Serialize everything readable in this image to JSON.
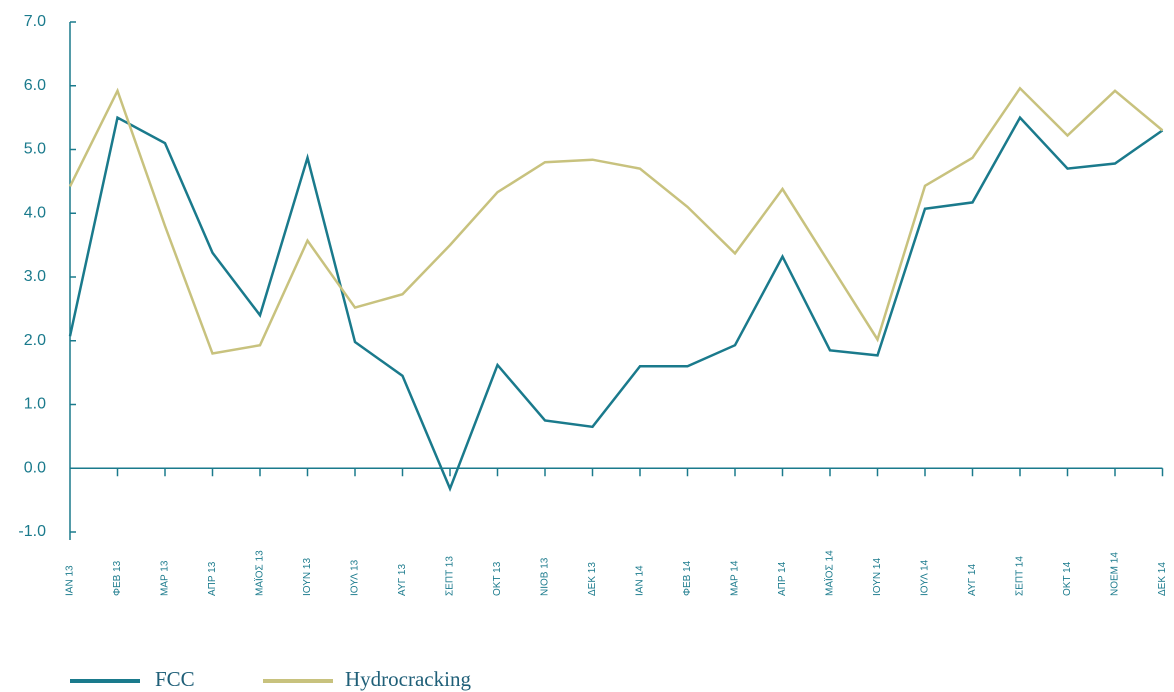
{
  "chart_data": {
    "type": "line",
    "categories": [
      "ΙΑΝ 13",
      "ΦΕΒ 13",
      "ΜΑΡ 13",
      "ΑΠΡ 13",
      "ΜΑΪΟΣ 13",
      "ΙΟΥΝ 13",
      "ΙΟΥΛ 13",
      "ΑΥΓ 13",
      "ΣΕΠΤ 13",
      "ΟΚΤ 13",
      "ΝΙΟΒ 13",
      "ΔΕΚ 13",
      "ΙΑΝ 14",
      "ΦΕΒ 14",
      "ΜΑΡ 14",
      "ΑΠΡ 14",
      "ΜΑΪΟΣ 14",
      "ΙΟΥΝ 14",
      "ΙΟΥΛ 14",
      "ΑΥΓ 14",
      "ΣΕΠΤ 14",
      "ΟΚΤ 14",
      "ΝΟΕΜ 14",
      "ΔΕΚ 14"
    ],
    "series": [
      {
        "name": "FCC",
        "color": "#1a7a8c",
        "values": [
          2.07,
          5.5,
          5.1,
          3.38,
          2.4,
          4.87,
          1.98,
          1.45,
          -0.32,
          1.62,
          0.75,
          0.65,
          1.6,
          1.6,
          1.93,
          3.32,
          1.85,
          1.77,
          4.07,
          4.17,
          5.5,
          4.7,
          4.78,
          5.3
        ]
      },
      {
        "name": "Hydrocracking",
        "color": "#c8c27e",
        "values": [
          4.42,
          5.92,
          3.8,
          1.8,
          1.93,
          3.57,
          2.52,
          2.73,
          3.5,
          4.33,
          4.8,
          4.84,
          4.7,
          4.1,
          3.37,
          4.38,
          3.2,
          2.02,
          4.43,
          4.87,
          5.96,
          5.22,
          5.92,
          5.3
        ]
      }
    ],
    "ylim": [
      -1,
      7
    ],
    "yticks": [
      {
        "value": -1,
        "label": "-1.0"
      },
      {
        "value": 0,
        "label": "0.0"
      },
      {
        "value": 1,
        "label": "1.0"
      },
      {
        "value": 2,
        "label": "2.0"
      },
      {
        "value": 3,
        "label": "3.0"
      },
      {
        "value": 4,
        "label": "4.0"
      },
      {
        "value": 5,
        "label": "5.0"
      },
      {
        "value": 6,
        "label": "6.0"
      },
      {
        "value": 7,
        "label": "7.0"
      }
    ]
  }
}
